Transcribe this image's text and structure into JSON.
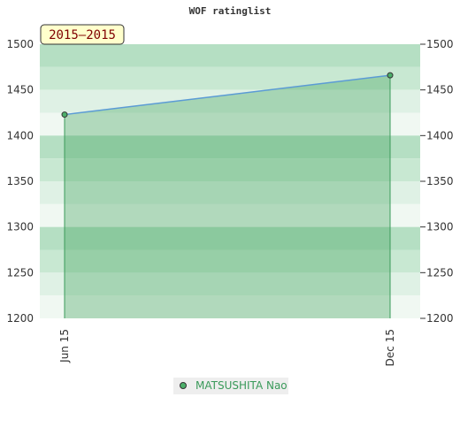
{
  "chart_data": {
    "type": "line",
    "title": "WOF ratinglist",
    "badge": "2015—2015",
    "categories": [
      "Jun 15",
      "Dec 15"
    ],
    "series": [
      {
        "name": "MATSUSHITA Nao",
        "color": "#5b9bd5",
        "values": [
          1423,
          1466
        ]
      }
    ],
    "ylim": [
      1200,
      1500
    ],
    "yticks": [
      1200,
      1250,
      1300,
      1350,
      1400,
      1450,
      1500
    ],
    "y2lim": [
      1200,
      1500
    ],
    "y2ticks": [
      1200,
      1250,
      1300,
      1350,
      1400,
      1450,
      1500
    ]
  }
}
